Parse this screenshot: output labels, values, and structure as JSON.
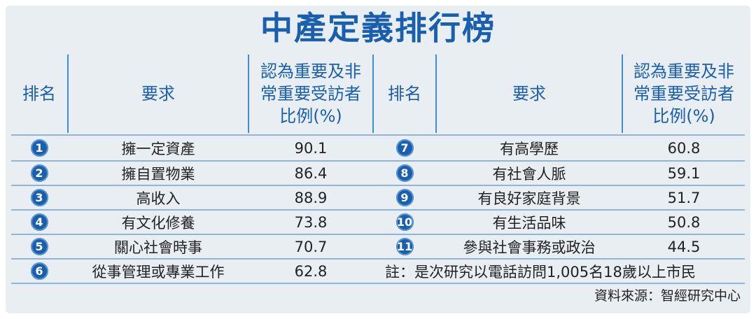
{
  "title": "中產定義排行榜",
  "headers": {
    "rank": "排名",
    "requirement": "要求",
    "ratio_line1": "認為重要及非",
    "ratio_line2": "常重要受訪者",
    "ratio_line3": "比例(%)"
  },
  "left_rows": [
    {
      "rank": "1",
      "requirement": "擁一定資產",
      "ratio": "90.1"
    },
    {
      "rank": "2",
      "requirement": "擁自置物業",
      "ratio": "86.4"
    },
    {
      "rank": "3",
      "requirement": "高收入",
      "ratio": "88.9"
    },
    {
      "rank": "4",
      "requirement": "有文化修養",
      "ratio": "73.8"
    },
    {
      "rank": "5",
      "requirement": "關心社會時事",
      "ratio": "70.7"
    },
    {
      "rank": "6",
      "requirement": "從事管理或專業工作",
      "ratio": "62.8"
    }
  ],
  "right_rows": [
    {
      "rank": "7",
      "requirement": "有高學歷",
      "ratio": "60.8"
    },
    {
      "rank": "8",
      "requirement": "有社會人脈",
      "ratio": "59.1"
    },
    {
      "rank": "9",
      "requirement": "有良好家庭背景",
      "ratio": "51.7"
    },
    {
      "rank": "10",
      "requirement": "有生活品味",
      "ratio": "50.8"
    },
    {
      "rank": "11",
      "requirement": "參與社會事務或政治",
      "ratio": "44.5"
    }
  ],
  "note": "註：是次研究以電話訪問1,005名18歲以上市民",
  "source": "資料來源：智經研究中心",
  "colors": {
    "accent": "#1a5fae",
    "background": "#e9eef3",
    "divider": "#3e8fd2"
  }
}
